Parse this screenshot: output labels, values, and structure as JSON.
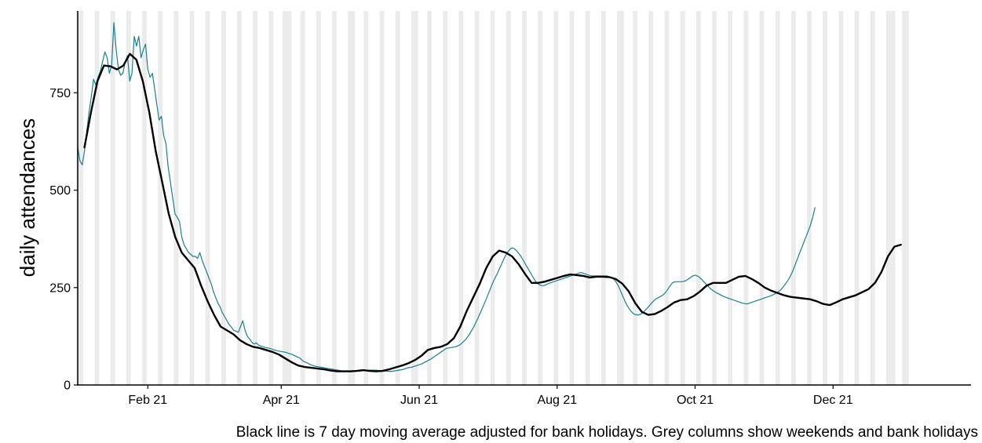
{
  "chart_data": {
    "type": "line",
    "ylabel": "daily attendances",
    "caption": "Black line is 7 day moving average adjusted for bank holidays. Grey columns show weekends and bank holidays",
    "x_range": [
      "2021-01-01",
      "2022-01-31"
    ],
    "ylim": [
      0,
      960
    ],
    "y_ticks": [
      0,
      250,
      500,
      750
    ],
    "y_tick_labels": [
      "0",
      "250",
      "500",
      "750"
    ],
    "x_ticks": [
      "2021-02-01",
      "2021-04-01",
      "2021-06-01",
      "2021-08-01",
      "2021-10-01",
      "2021-12-01"
    ],
    "x_tick_labels": [
      "Feb 21",
      "Apr 21",
      "Jun 21",
      "Aug 21",
      "Oct 21",
      "Dec 21"
    ],
    "grid": false,
    "background_columns": "weekends and bank holidays (2021-01-01 to 2022-01-03)",
    "colors": {
      "daily": "#1b7f91",
      "average": "#000000",
      "columns": "#ebebeb"
    },
    "series": [
      {
        "role": "daily",
        "start": "2021-01-01",
        "values": [
          610,
          575,
          565,
          600,
          650,
          700,
          740,
          785,
          770,
          790,
          805,
          830,
          855,
          840,
          800,
          820,
          930,
          860,
          810,
          795,
          800,
          830,
          845,
          780,
          800,
          895,
          870,
          895,
          840,
          860,
          875,
          810,
          790,
          800,
          760,
          720,
          680,
          690,
          640,
          620,
          560,
          520,
          480,
          440,
          430,
          420,
          380,
          360,
          350,
          340,
          335,
          330,
          330,
          325,
          340,
          320,
          305,
          290,
          275,
          260,
          240,
          225,
          210,
          200,
          185,
          175,
          165,
          155,
          148,
          140,
          138,
          135,
          150,
          165,
          140,
          125,
          118,
          110,
          105,
          108,
          102,
          100,
          98,
          96,
          95,
          94,
          92,
          90,
          88,
          87,
          86,
          85,
          84,
          82,
          80,
          78,
          75,
          72,
          70,
          65,
          60,
          58,
          55,
          52,
          50,
          48,
          47,
          46,
          45,
          44,
          43,
          42,
          41,
          40,
          39,
          38,
          37,
          36,
          35,
          35,
          34,
          34,
          35,
          35,
          36,
          36,
          37,
          37,
          38,
          38,
          38,
          38,
          38,
          37,
          37,
          36,
          36,
          35,
          35,
          35,
          36,
          37,
          38,
          39,
          40,
          42,
          44,
          45,
          46,
          48,
          50,
          52,
          54,
          57,
          60,
          63,
          66,
          70,
          74,
          78,
          82,
          86,
          90,
          94,
          95,
          96,
          97,
          98,
          100,
          103,
          108,
          114,
          120,
          128,
          138,
          148,
          160,
          172,
          185,
          198,
          212,
          226,
          240,
          255,
          268,
          280,
          292,
          305,
          318,
          330,
          340,
          348,
          352,
          350,
          345,
          338,
          330,
          320,
          310,
          300,
          290,
          280,
          270,
          262,
          258,
          255,
          255,
          257,
          260,
          262,
          264,
          266,
          268,
          270,
          272,
          274,
          276,
          278,
          280,
          282,
          284,
          286,
          288,
          288,
          286,
          284,
          282,
          280,
          280,
          280,
          280,
          280,
          280,
          280,
          280,
          278,
          276,
          272,
          265,
          255,
          242,
          228,
          215,
          203,
          194,
          187,
          182,
          180,
          180,
          182,
          186,
          192,
          198,
          205,
          212,
          218,
          222,
          225,
          228,
          232,
          238,
          246,
          255,
          262,
          265,
          265,
          265,
          265,
          266,
          268,
          272,
          276,
          280,
          282,
          280,
          276,
          270,
          264,
          258,
          252,
          246,
          242,
          238,
          235,
          232,
          229,
          226,
          224,
          222,
          220,
          218,
          216,
          214,
          212,
          210,
          209,
          208,
          210,
          212,
          214,
          216,
          218,
          220,
          222,
          224,
          226,
          228,
          230,
          233,
          236,
          240,
          245,
          252,
          260,
          268,
          278,
          290,
          305,
          320,
          335,
          350,
          365,
          380,
          395,
          410,
          430,
          455
        ]
      },
      {
        "role": "average",
        "start": "2021-01-04",
        "end": "2021-12-31",
        "values": [
          610,
          700,
          780,
          820,
          818,
          810,
          820,
          850,
          835,
          780,
          700,
          600,
          520,
          440,
          380,
          340,
          320,
          300,
          255,
          215,
          180,
          150,
          140,
          130,
          115,
          105,
          98,
          95,
          90,
          85,
          78,
          68,
          58,
          50,
          46,
          44,
          42,
          40,
          37,
          35,
          35,
          35,
          36,
          38,
          36,
          35,
          36,
          40,
          45,
          50,
          56,
          64,
          75,
          90,
          95,
          98,
          105,
          120,
          150,
          190,
          225,
          260,
          300,
          330,
          345,
          340,
          330,
          310,
          285,
          262,
          262,
          265,
          270,
          275,
          280,
          284,
          282,
          280,
          276,
          278,
          278,
          277,
          272,
          260,
          240,
          210,
          188,
          180,
          182,
          190,
          200,
          212,
          218,
          220,
          228,
          240,
          255,
          262,
          262,
          262,
          270,
          278,
          280,
          272,
          262,
          250,
          242,
          236,
          230,
          226,
          224,
          222,
          220,
          215,
          208,
          205,
          212,
          220,
          225,
          230,
          238,
          246,
          262,
          290,
          330,
          355,
          360
        ]
      }
    ]
  }
}
